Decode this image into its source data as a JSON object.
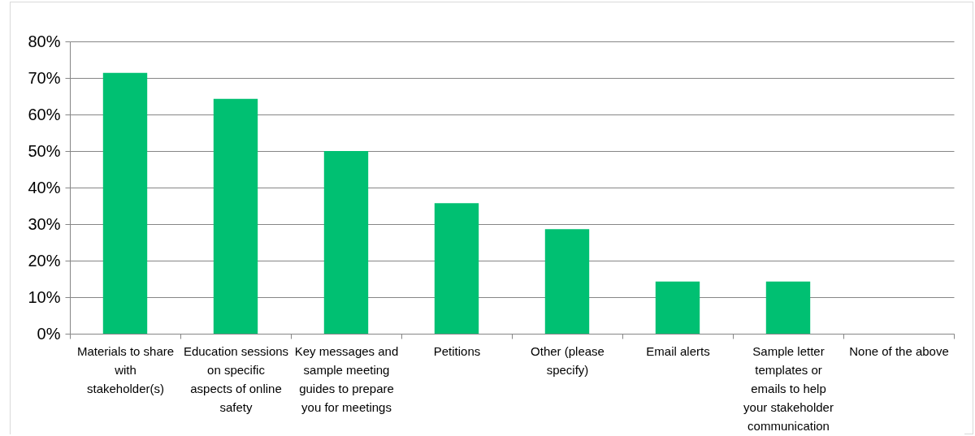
{
  "chart_data": {
    "type": "bar",
    "categories": [
      "Materials to share with stakeholder(s)",
      "Education sessions on specific aspects of online safety",
      "Key messages and sample meeting guides to prepare you for meetings",
      "Petitions",
      "Other (please specify)",
      "Email alerts",
      "Sample letter templates or emails to help your stakeholder communication",
      "None of the above"
    ],
    "values": [
      71.4,
      64.3,
      50,
      35.7,
      28.6,
      14.3,
      14.3,
      0
    ],
    "color": "#00c072",
    "ylim": [
      0,
      80
    ],
    "yticks": [
      {
        "value": 0,
        "label": "0%"
      },
      {
        "value": 10,
        "label": "10%"
      },
      {
        "value": 20,
        "label": "20%"
      },
      {
        "value": 30,
        "label": "30%"
      },
      {
        "value": 40,
        "label": "40%"
      },
      {
        "value": 50,
        "label": "50%"
      },
      {
        "value": 60,
        "label": "60%"
      },
      {
        "value": 70,
        "label": "70%"
      },
      {
        "value": 80,
        "label": "80%"
      }
    ],
    "grid": "y"
  }
}
